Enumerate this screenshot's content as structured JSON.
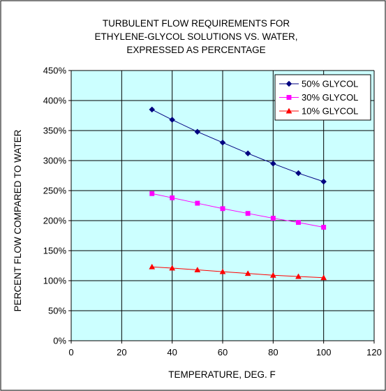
{
  "chart_data": {
    "type": "line",
    "title_lines": [
      "TURBULENT FLOW REQUIREMENTS FOR",
      "ETHYLENE-GLYCOL SOLUTIONS VS. WATER,",
      "EXPRESSED AS PERCENTAGE"
    ],
    "xlabel": "TEMPERATURE, DEG. F",
    "ylabel": "PERCENT FLOW COMPARED TO WATER",
    "xlim": [
      0,
      120
    ],
    "ylim": [
      0,
      4.5
    ],
    "x_ticks": [
      0,
      20,
      40,
      60,
      80,
      100,
      120
    ],
    "x_tick_labels": [
      "0",
      "20",
      "40",
      "60",
      "80",
      "100",
      "120"
    ],
    "y_ticks": [
      0,
      0.5,
      1.0,
      1.5,
      2.0,
      2.5,
      3.0,
      3.5,
      4.0,
      4.5
    ],
    "y_tick_labels": [
      "0%",
      "50%",
      "100%",
      "150%",
      "200%",
      "250%",
      "300%",
      "350%",
      "400%",
      "450%"
    ],
    "grid": true,
    "plot_background": "#ccffff",
    "legend_position": "top-right",
    "x": [
      32,
      40,
      50,
      60,
      70,
      80,
      90,
      100
    ],
    "series": [
      {
        "name": "50% GLYCOL",
        "color": "#000080",
        "marker": "diamond",
        "values": [
          3.85,
          3.68,
          3.48,
          3.3,
          3.12,
          2.95,
          2.79,
          2.65
        ]
      },
      {
        "name": "30% GLYCOL",
        "color": "#ff00ff",
        "marker": "square",
        "values": [
          2.45,
          2.38,
          2.29,
          2.2,
          2.12,
          2.04,
          1.97,
          1.89
        ]
      },
      {
        "name": "10% GLYCOL",
        "color": "#ff0000",
        "marker": "triangle",
        "values": [
          1.23,
          1.21,
          1.18,
          1.15,
          1.12,
          1.09,
          1.07,
          1.05
        ]
      }
    ]
  }
}
